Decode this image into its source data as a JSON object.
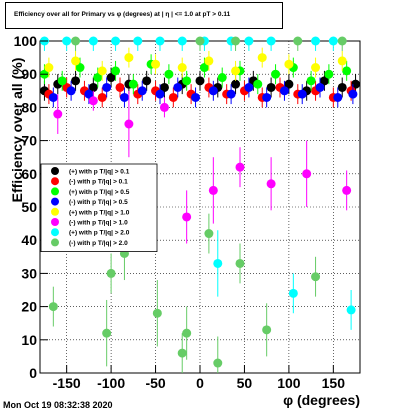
{
  "timestamp": "Mon Oct 19 08:32:38 2020",
  "chart_data": {
    "type": "scatter",
    "title": "Efficiency over all for Primary vs φ (degrees) at | η | <= 1.0 at pT > 0.11",
    "xlabel": "φ (degrees)",
    "ylabel": "Efficiency over all (%)",
    "xlim": [
      -180,
      180
    ],
    "ylim": [
      0,
      100
    ],
    "x_ticks": [
      -150,
      -100,
      -50,
      0,
      50,
      100,
      150
    ],
    "y_ticks": [
      0,
      10,
      20,
      30,
      40,
      50,
      60,
      70,
      80,
      90,
      100
    ],
    "grid": true,
    "legend_position": "center-left",
    "series": [
      {
        "name": "(+) with p T/|q| > 0.1",
        "color": "#000000",
        "x": [
          -175,
          -160,
          -140,
          -120,
          -100,
          -80,
          -60,
          -40,
          -20,
          0,
          20,
          40,
          60,
          80,
          100,
          120,
          140,
          160,
          175
        ],
        "y": [
          85,
          87,
          88,
          86,
          89,
          87,
          88,
          86,
          87,
          88,
          86,
          87,
          88,
          86,
          87,
          85,
          88,
          86,
          87
        ]
      },
      {
        "name": "(-) with p T/|q| > 0.1",
        "color": "#ff0000",
        "x": [
          -170,
          -150,
          -130,
          -110,
          -90,
          -70,
          -50,
          -30,
          -10,
          10,
          30,
          50,
          70,
          90,
          110,
          130,
          150,
          170
        ],
        "y": [
          84,
          86,
          85,
          83,
          86,
          84,
          85,
          83,
          84,
          86,
          84,
          85,
          83,
          86,
          84,
          85,
          83,
          85
        ]
      },
      {
        "name": "(+) with p T/|q| > 0.5",
        "color": "#00ff00",
        "x": [
          -175,
          -155,
          -135,
          -115,
          -95,
          -75,
          -55,
          -35,
          -15,
          5,
          25,
          45,
          65,
          85,
          105,
          125,
          145,
          165
        ],
        "y": [
          90,
          88,
          92,
          89,
          91,
          87,
          93,
          90,
          88,
          92,
          89,
          91,
          87,
          90,
          92,
          88,
          90,
          91
        ]
      },
      {
        "name": "(-) with p T/|q| > 0.5",
        "color": "#0000ff",
        "x": [
          -165,
          -145,
          -125,
          -105,
          -85,
          -65,
          -45,
          -25,
          -5,
          15,
          35,
          55,
          75,
          95,
          115,
          135,
          155,
          172
        ],
        "y": [
          83,
          85,
          84,
          86,
          83,
          85,
          84,
          86,
          83,
          85,
          84,
          86,
          83,
          85,
          84,
          86,
          83,
          84
        ]
      },
      {
        "name": "(+) with p T/|q| > 1.0",
        "color": "#ffff00",
        "x": [
          -170,
          -140,
          -110,
          -80,
          -50,
          -20,
          10,
          40,
          70,
          100,
          130,
          160
        ],
        "y": [
          92,
          94,
          91,
          95,
          93,
          92,
          94,
          91,
          95,
          93,
          92,
          94
        ]
      },
      {
        "name": "(-) with p T/|q| > 1.0",
        "color": "#ff00ff",
        "x": [
          -160,
          -120,
          -80,
          -40,
          -15,
          15,
          45,
          80,
          120,
          165
        ],
        "y": [
          78,
          82,
          75,
          80,
          47,
          55,
          62,
          57,
          60,
          55
        ]
      },
      {
        "name": "(+) with p T/|q| > 2.0",
        "color": "#00ffff",
        "x": [
          -175,
          -150,
          -120,
          -95,
          -70,
          -45,
          -20,
          5,
          20,
          35,
          55,
          80,
          105,
          130,
          150,
          170
        ],
        "y": [
          100,
          100,
          100,
          100,
          100,
          100,
          100,
          100,
          33,
          100,
          100,
          100,
          24,
          100,
          100,
          19
        ]
      },
      {
        "name": "(-) with p T/|q| > 2.0",
        "color": "#66cc66",
        "x": [
          -165,
          -140,
          -105,
          -100,
          -85,
          -48,
          -20,
          -15,
          0,
          10,
          20,
          40,
          45,
          75,
          110,
          130,
          160
        ],
        "y": [
          20,
          100,
          12,
          30,
          36,
          18,
          6,
          12,
          100,
          42,
          3,
          100,
          33,
          13,
          100,
          29,
          100
        ]
      }
    ]
  }
}
